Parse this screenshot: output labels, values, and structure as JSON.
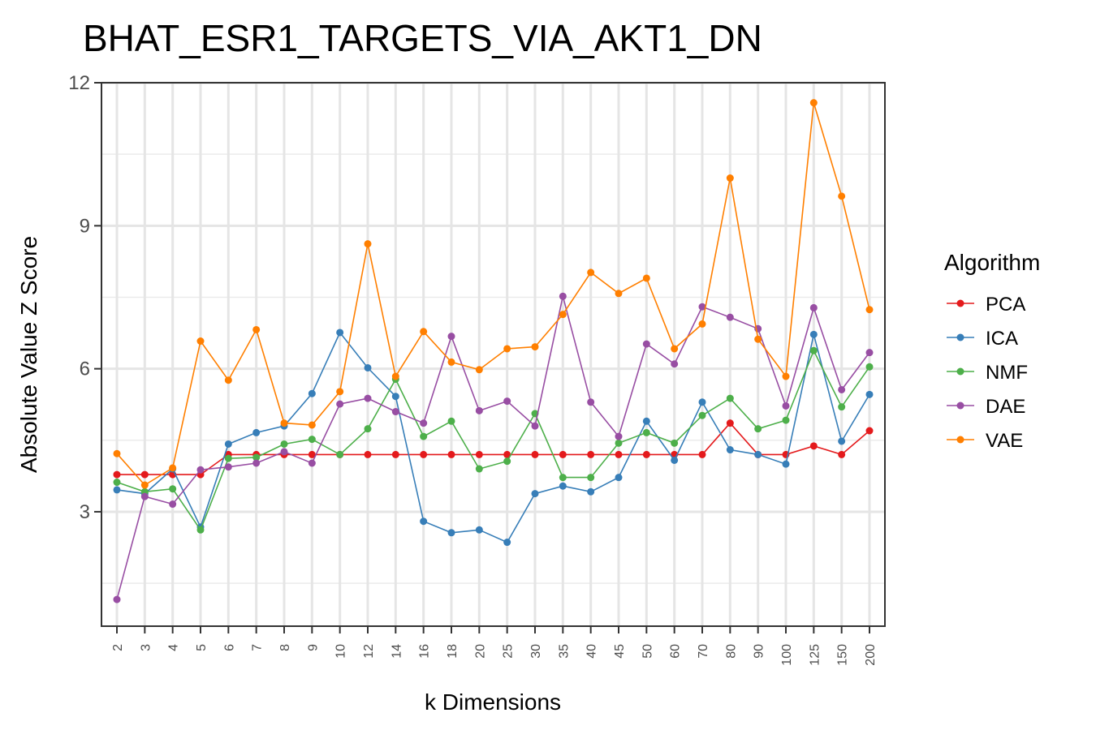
{
  "chart_data": {
    "type": "line",
    "title": "BHAT_ESR1_TARGETS_VIA_AKT1_DN",
    "xlabel": "k Dimensions",
    "ylabel": "Absolute Value Z Score",
    "categories": [
      "2",
      "3",
      "4",
      "5",
      "6",
      "7",
      "8",
      "9",
      "10",
      "12",
      "14",
      "16",
      "18",
      "20",
      "25",
      "30",
      "35",
      "40",
      "45",
      "50",
      "60",
      "70",
      "80",
      "90",
      "100",
      "125",
      "150",
      "200"
    ],
    "ylim": [
      0.6,
      12.0
    ],
    "yticks": [
      3,
      6,
      9,
      12
    ],
    "grid": true,
    "legend": {
      "title": "Algorithm",
      "position": "right"
    },
    "series": [
      {
        "name": "PCA",
        "color": "#E41A1C",
        "values": [
          3.78,
          3.78,
          3.78,
          3.78,
          4.2,
          4.2,
          4.2,
          4.2,
          4.2,
          4.2,
          4.2,
          4.2,
          4.2,
          4.2,
          4.2,
          4.2,
          4.2,
          4.2,
          4.2,
          4.2,
          4.2,
          4.2,
          4.86,
          4.2,
          4.2,
          4.38,
          4.2,
          4.7
        ]
      },
      {
        "name": "ICA",
        "color": "#377EB8",
        "values": [
          3.46,
          3.38,
          3.9,
          2.68,
          4.42,
          4.66,
          4.8,
          5.48,
          6.76,
          6.02,
          5.42,
          2.8,
          2.56,
          2.62,
          2.36,
          3.38,
          3.54,
          3.42,
          3.72,
          4.9,
          4.08,
          5.3,
          4.3,
          4.2,
          4.0,
          6.72,
          4.48,
          5.46
        ]
      },
      {
        "name": "NMF",
        "color": "#4DAF4A",
        "values": [
          3.62,
          3.42,
          3.48,
          2.62,
          4.12,
          4.14,
          4.42,
          4.52,
          4.2,
          4.74,
          5.78,
          4.58,
          4.9,
          3.9,
          4.06,
          5.06,
          3.72,
          3.72,
          4.44,
          4.66,
          4.44,
          5.02,
          5.38,
          4.74,
          4.92,
          6.38,
          5.2,
          6.04
        ]
      },
      {
        "name": "DAE",
        "color": "#984EA3",
        "values": [
          1.16,
          3.32,
          3.16,
          3.88,
          3.94,
          4.02,
          4.26,
          4.02,
          5.26,
          5.38,
          5.1,
          4.86,
          6.68,
          5.12,
          5.32,
          4.8,
          7.52,
          5.3,
          4.58,
          6.52,
          6.1,
          7.3,
          7.08,
          6.84,
          5.22,
          7.28,
          5.56,
          6.34
        ]
      },
      {
        "name": "VAE",
        "color": "#FF7F00",
        "values": [
          4.22,
          3.56,
          3.92,
          6.58,
          5.76,
          6.82,
          4.86,
          4.82,
          5.52,
          8.62,
          5.84,
          6.78,
          6.14,
          5.98,
          6.42,
          6.46,
          7.14,
          8.02,
          7.58,
          7.9,
          6.42,
          6.94,
          10.0,
          6.62,
          5.84,
          11.58,
          9.62,
          7.24
        ]
      }
    ]
  }
}
